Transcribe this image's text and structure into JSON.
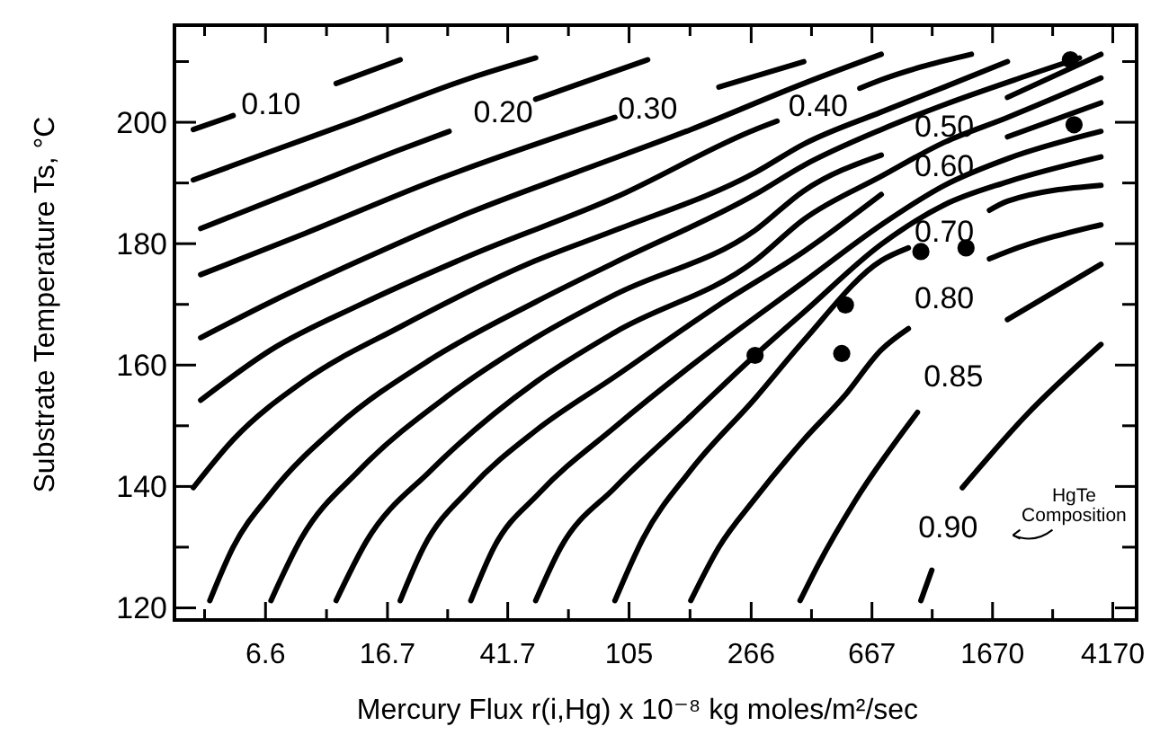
{
  "chart_data": {
    "type": "line",
    "xlabel": "Mercury Flux  r(i,Hg)  x 10⁻⁸ kg moles/m²/sec",
    "ylabel": "Substrate Temperature Ts, °C",
    "log": "x",
    "xlim": [
      3.3,
      5000
    ],
    "ylim": [
      118,
      216
    ],
    "xticks": [
      {
        "value": 4.15,
        "label": null
      },
      6.6,
      {
        "value": 10.5,
        "label": null
      },
      16.7,
      {
        "value": 26.4,
        "label": null
      },
      41.7,
      {
        "value": 66.2,
        "label": null
      },
      105,
      {
        "value": 167,
        "label": null
      },
      266,
      {
        "value": 421,
        "label": null
      },
      667,
      {
        "value": 1055,
        "label": null
      },
      1670,
      {
        "value": 2639,
        "label": null
      },
      4170
    ],
    "yticks": [
      120,
      {
        "value": 130,
        "label": null
      },
      140,
      {
        "value": 150,
        "label": null
      },
      160,
      {
        "value": 170,
        "label": null
      },
      180,
      {
        "value": 190,
        "label": null
      },
      200,
      {
        "value": 210,
        "label": null
      }
    ],
    "marker": "none",
    "annotations": [
      "HgTe Composition"
    ],
    "series": [
      {
        "name": "0.10",
        "color": "#000000",
        "x": [
          3.81,
          5.16,
          6.88,
          11.3,
          18.4
        ],
        "values": [
          198.8,
          201.1,
          null,
          206.4,
          210.3
        ]
      },
      {
        "color": "#000000",
        "x": [
          3.81,
          6.88,
          13.5,
          31.5,
          51.6
        ],
        "values": [
          190.5,
          195.2,
          200.5,
          207.3,
          210.6
        ]
      },
      {
        "name": "0.20",
        "color": "#000000",
        "x": [
          4.03,
          8.92,
          18.4,
          26.7,
          40.3,
          51.6,
          69.7,
          121
        ],
        "values": [
          182.5,
          189.3,
          195.5,
          198.5,
          null,
          203.8,
          206.1,
          210.3
        ]
      },
      {
        "name": "0.30",
        "color": "#000000",
        "x": [
          4.03,
          8.92,
          23.3,
          94.3,
          121,
          208,
          397
        ],
        "values": [
          174.9,
          181.7,
          190.2,
          200.8,
          null,
          205.8,
          210.0
        ]
      },
      {
        "color": "#000000",
        "x": [
          4.03,
          6.88,
          13.5,
          31.5,
          69.7,
          168,
          397,
          716
        ],
        "values": [
          164.5,
          170.4,
          177.2,
          185.2,
          191.7,
          198.8,
          206.4,
          211.2
        ]
      },
      {
        "name": "0.40",
        "color": "#000000",
        "x": [
          4.03,
          6.88,
          13.5,
          31.5,
          94.3,
          274,
          324,
          443,
          608,
          716,
          1422
        ],
        "values": [
          154.2,
          162.5,
          169.9,
          178.1,
          187.6,
          198.8,
          200.2,
          null,
          205.6,
          207.0,
          211.2
        ]
      },
      {
        "color": "#000000",
        "x": [
          3.81,
          5.16,
          8.92,
          18.4,
          51.6,
          94.3,
          274,
          397,
          716,
          1157,
          1871
        ],
        "values": [
          139.8,
          147.7,
          157.5,
          166.3,
          177.2,
          182.2,
          191.7,
          196.4,
          201.7,
          205.8,
          210.0
        ]
      },
      {
        "color": "#000000",
        "x": [
          4.32,
          5.16,
          6.88,
          11.3,
          23.3,
          51.6,
          94.3,
          274,
          397,
          716,
          1157,
          2145,
          3236
        ],
        "values": [
          121.2,
          130.0,
          138.9,
          149.8,
          161.0,
          170.4,
          176.9,
          188.1,
          192.9,
          198.8,
          202.9,
          207.6,
          210.6
        ]
      },
      {
        "name": "0.50",
        "color": "#000000",
        "x": [
          6.88,
          8.68,
          13.5,
          26.7,
          51.6,
          94.3,
          274,
          397,
          716,
          1157,
          1871,
          3811
        ],
        "values": [
          121.2,
          131.5,
          142.7,
          155.1,
          164.5,
          171.6,
          182.2,
          188.7,
          194.6,
          null,
          204.1,
          211.2
        ]
      },
      {
        "color": "#000000",
        "x": [
          11.3,
          14.2,
          23.3,
          51.6,
          94.3,
          274,
          397,
          716,
          1157,
          1871,
          3811
        ],
        "values": [
          121.2,
          130.9,
          142.7,
          157.2,
          165.4,
          177.2,
          184.0,
          191.1,
          196.7,
          200.8,
          207.3
        ]
      },
      {
        "name": "0.60",
        "color": "#000000",
        "x": [
          18.4,
          22.0,
          31.5,
          51.6,
          94.3,
          208,
          397,
          716,
          1157,
          1871,
          3811
        ],
        "values": [
          121.2,
          130.0,
          139.8,
          149.2,
          158.1,
          169.9,
          178.7,
          188.1,
          null,
          197.6,
          203.2
        ]
      },
      {
        "color": "#000000",
        "x": [
          31.5,
          37.6,
          53.0,
          94.3,
          208,
          397,
          716,
          1157,
          1871,
          3811
        ],
        "values": [
          121.2,
          130.0,
          138.9,
          149.8,
          163.4,
          173.7,
          183.1,
          189.6,
          194.0,
          198.5
        ]
      },
      {
        "color": "#000000",
        "x": [
          51.6,
          62.5,
          94.3,
          168,
          274,
          397,
          716,
          1157,
          1871,
          3811
        ],
        "values": [
          121.2,
          130.0,
          139.8,
          151.6,
          161.6,
          168.7,
          179.9,
          186.4,
          190.2,
          194.3
        ]
      },
      {
        "name": "0.70",
        "color": "#000000",
        "x": [
          94.3,
          117,
          168,
          274,
          397,
          716,
          880,
          1157,
          1631,
          1871,
          3811
        ],
        "values": [
          121.2,
          131.5,
          142.7,
          154.5,
          164.0,
          177.2,
          179.3,
          null,
          185.5,
          187.0,
          189.6
        ]
      },
      {
        "name": "0.80",
        "color": "#000000",
        "x": [
          168,
          208,
          274,
          397,
          545,
          716,
          880,
          1157,
          1631,
          1871,
          3811
        ],
        "values": [
          121.2,
          130.0,
          138.0,
          147.7,
          155.1,
          162.5,
          166.0,
          null,
          177.5,
          178.7,
          183.1
        ]
      },
      {
        "name": "0.85",
        "color": "#000000",
        "x": [
          386,
          443,
          583,
          943,
          1240,
          1871,
          3811
        ],
        "values": [
          121.2,
          127.1,
          137.4,
          152.2,
          null,
          167.5,
          176.6
        ]
      },
      {
        "name": "0.90",
        "color": "#000000",
        "x": [
          968,
          1052,
          1190,
          1327,
          2145,
          3811
        ],
        "values": [
          121.2,
          126.2,
          null,
          139.8,
          151.6,
          163.4
        ]
      },
      {
        "type": "scatter",
        "marker": "circle",
        "color": "#000000",
        "x": [
          274,
          530,
          545,
          968,
          1365,
          3020,
          3106
        ],
        "values": [
          161.6,
          161.9,
          169.9,
          178.7,
          179.3,
          210.3,
          199.6
        ]
      }
    ]
  }
}
